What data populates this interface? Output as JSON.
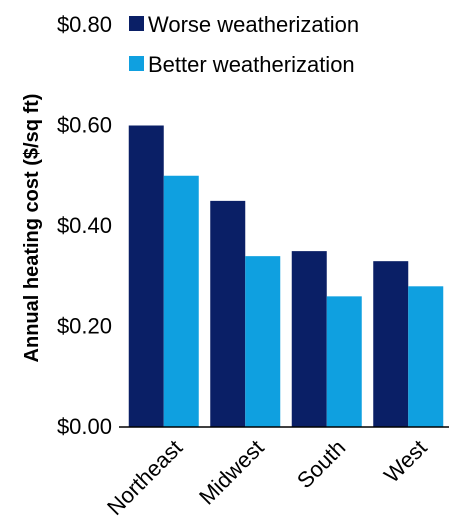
{
  "chart_data": {
    "type": "bar",
    "title": "",
    "xlabel": "",
    "ylabel": "Annual heating cost ($/sq ft)",
    "categories": [
      "Northeast",
      "Midwest",
      "South",
      "West"
    ],
    "series": [
      {
        "name": "Worse weatherization",
        "values": [
          0.6,
          0.45,
          0.35,
          0.33
        ]
      },
      {
        "name": "Better weatherization",
        "values": [
          0.5,
          0.34,
          0.26,
          0.28
        ]
      }
    ],
    "ylim": [
      0,
      0.8
    ],
    "yticks": [
      0.0,
      0.2,
      0.4,
      0.6,
      0.8
    ],
    "ytick_labels": [
      "$0.00",
      "$0.20",
      "$0.40",
      "$0.60",
      "$0.80"
    ],
    "grid": false,
    "legend_position": "top"
  },
  "colors": {
    "worse": "#0a1f66",
    "better": "#0fa0e0",
    "axis": "#000000"
  }
}
